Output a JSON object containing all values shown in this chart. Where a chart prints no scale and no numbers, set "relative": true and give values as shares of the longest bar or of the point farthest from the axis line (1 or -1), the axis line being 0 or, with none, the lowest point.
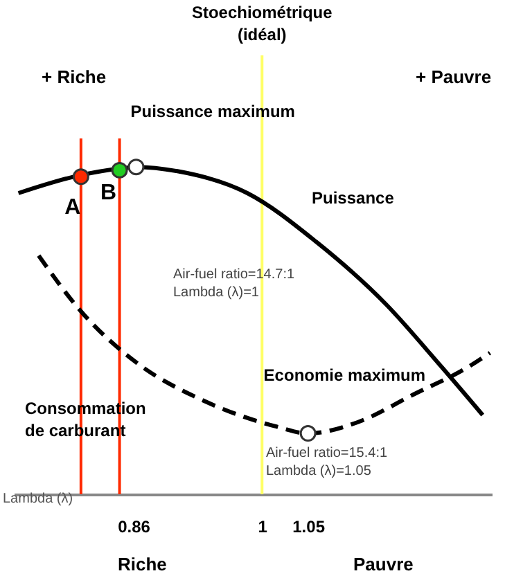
{
  "chart_data": {
    "type": "line",
    "relative": true,
    "xlabel": "Lambda (λ)",
    "xlim": [
      0.73,
      1.25
    ],
    "xticks": [
      0.86,
      1,
      1.05
    ],
    "grid": false,
    "line_style": "solid",
    "series": [
      {
        "name": "Puissance",
        "color": "#000000",
        "x": [
          0.735,
          0.795,
          0.848,
          0.863,
          0.908,
          0.984,
          1.059,
          1.135,
          1.195,
          1.24
        ],
        "values": [
          0.92,
          0.97,
          0.996,
          1,
          0.987,
          0.92,
          0.771,
          0.58,
          0.39,
          0.242
        ]
      },
      {
        "name": "Consommation de carburant",
        "color": "#000000",
        "line_style": "dashed",
        "x": [
          0.757,
          0.803,
          0.863,
          0.938,
          1.014,
          1.05,
          1.104,
          1.165,
          1.225,
          1.248
        ],
        "values": [
          0.729,
          0.559,
          0.403,
          0.284,
          0.208,
          0.186,
          0.22,
          0.305,
          0.39,
          0.432
        ]
      },
      {
        "type": "scatter",
        "marker": "circle",
        "color": "#ff2a00",
        "x": [
          0.803
        ],
        "values": [
          0.97
        ]
      },
      {
        "type": "scatter",
        "marker": "circle",
        "color": "#22cc22",
        "x": [
          0.845
        ],
        "values": [
          0.99
        ]
      },
      {
        "type": "scatter",
        "marker": "circle",
        "color": "#ffffff",
        "x": [
          0.863,
          1.05
        ],
        "values": [
          1,
          0.186
        ]
      }
    ],
    "ref_lines": [
      {
        "axis": "x",
        "value": 1,
        "label": "Stoechiométrique (idéal)",
        "color": "#ffff66"
      },
      {
        "axis": "x",
        "value": 0.803,
        "color": "#ff2a00"
      },
      {
        "axis": "x",
        "value": 0.845,
        "color": "#ff2a00"
      }
    ],
    "annotations": [
      {
        "text": "Puissance maximum",
        "x": 0.863,
        "y": 1
      },
      {
        "text": "Economie maximum",
        "x": 1.05,
        "y": 0.186
      },
      {
        "text": "A",
        "x": 0.803,
        "y": 0.97
      },
      {
        "text": "B",
        "x": 0.845,
        "y": 0.99
      },
      "+ Riche",
      "+ Pauvre",
      "Air-fuel ratio=14.7:1\nLambda (λ)=1",
      "Air-fuel ratio=15.4:1\nLambda (λ)=1.05",
      "Riche",
      "Pauvre"
    ]
  }
}
